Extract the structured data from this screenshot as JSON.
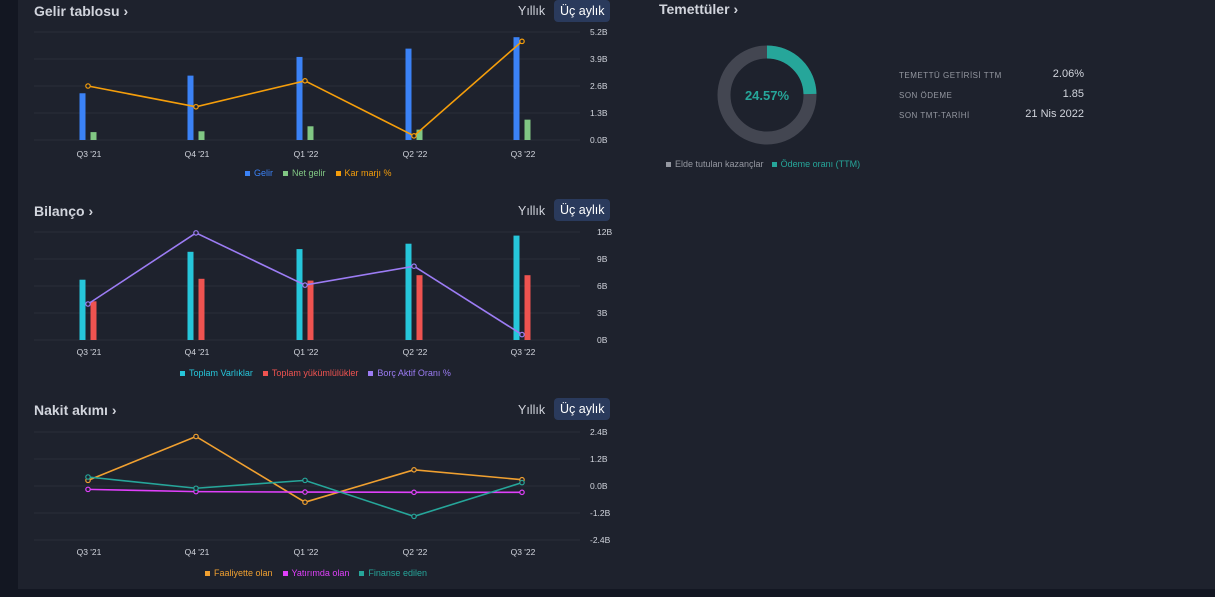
{
  "sections": [
    {
      "title": "Gelir tablosu",
      "chevron": "›",
      "buttons": [
        "Yıllık",
        "Üç aylık"
      ],
      "active_button": 1,
      "legend": [
        {
          "label": "Gelir",
          "color": "#3b82f6"
        },
        {
          "label": "Net gelir",
          "color": "#81c784"
        },
        {
          "label": "Kar marjı %",
          "color": "#f59e0b"
        }
      ]
    },
    {
      "title": "Bilanço",
      "chevron": "›",
      "buttons": [
        "Yıllık",
        "Üç aylık"
      ],
      "active_button": 1,
      "legend": [
        {
          "label": "Toplam Varlıklar",
          "color": "#26c6da"
        },
        {
          "label": "Toplam yükümlülükler",
          "color": "#ef5350"
        },
        {
          "label": "Borç Aktif Oranı %",
          "color": "#9c7cf4"
        }
      ]
    },
    {
      "title": "Nakit akımı",
      "chevron": "›",
      "buttons": [
        "Yıllık",
        "Üç aylık"
      ],
      "active_button": 1,
      "legend": [
        {
          "label": "Faaliyette olan",
          "color": "#f0a030"
        },
        {
          "label": "Yatırımda olan",
          "color": "#e040fb"
        },
        {
          "label": "Finanse edilen",
          "color": "#26a69a"
        }
      ]
    }
  ],
  "dividends": {
    "title": "Temettüler",
    "chevron": "›",
    "center_text": "24.57%",
    "payout_fraction": 0.2457,
    "stats": [
      {
        "label": "TEMETTÜ GETİRİSİ TTM",
        "value": "2.06%"
      },
      {
        "label": "SON ÖDEME",
        "value": "1.85"
      },
      {
        "label": "SON TMT-TARİHİ",
        "value": "21 Nis 2022"
      }
    ],
    "legend": [
      {
        "label": "Elde tutulan kazançlar",
        "color": "#9598a1"
      },
      {
        "label": "Ödeme oranı (TTM)",
        "color": "#26a69a"
      }
    ],
    "colors": {
      "retained": "#434651",
      "payout": "#26a69a"
    }
  },
  "chart_data": [
    {
      "type": "bar",
      "title": "Gelir tablosu",
      "categories": [
        "Q3 '21",
        "Q4 '21",
        "Q1 '22",
        "Q2 '22",
        "Q3 '22"
      ],
      "y_ticks": [
        "5.2B",
        "3.9B",
        "2.6B",
        "1.3B",
        "0.0B"
      ],
      "ylim": [
        0,
        5.2
      ],
      "series": [
        {
          "name": "Gelir",
          "kind": "bar",
          "color": "#3b82f6",
          "values": [
            2.25,
            3.1,
            4.0,
            4.4,
            4.95
          ]
        },
        {
          "name": "Net gelir",
          "kind": "bar",
          "color": "#81c784",
          "values": [
            0.38,
            0.42,
            0.66,
            0.5,
            0.98
          ]
        },
        {
          "name": "Kar marjı %",
          "kind": "line",
          "color": "#f59e0b",
          "values": [
            2.6,
            1.6,
            2.85,
            0.2,
            4.75
          ]
        }
      ]
    },
    {
      "type": "bar",
      "title": "Bilanço",
      "categories": [
        "Q3 '21",
        "Q4 '21",
        "Q1 '22",
        "Q2 '22",
        "Q3 '22"
      ],
      "y_ticks": [
        "12B",
        "9B",
        "6B",
        "3B",
        "0B"
      ],
      "ylim": [
        0,
        12
      ],
      "series": [
        {
          "name": "Toplam Varlıklar",
          "kind": "bar",
          "color": "#26c6da",
          "values": [
            6.7,
            9.8,
            10.1,
            10.7,
            11.6
          ]
        },
        {
          "name": "Toplam yükümlülükler",
          "kind": "bar",
          "color": "#ef5350",
          "values": [
            4.3,
            6.8,
            6.6,
            7.2,
            7.2
          ]
        },
        {
          "name": "Borç Aktif Oranı %",
          "kind": "line",
          "color": "#9c7cf4",
          "values": [
            4.0,
            11.9,
            6.1,
            8.2,
            0.6
          ]
        }
      ]
    },
    {
      "type": "line",
      "title": "Nakit akımı",
      "categories": [
        "Q3 '21",
        "Q4 '21",
        "Q1 '22",
        "Q2 '22",
        "Q3 '22"
      ],
      "y_ticks": [
        "2.4B",
        "1.2B",
        "0.0B",
        "-1.2B",
        "-2.4B"
      ],
      "ylim": [
        -2.4,
        2.4
      ],
      "series": [
        {
          "name": "Faaliyette olan",
          "kind": "line",
          "color": "#f0a030",
          "values": [
            0.25,
            2.2,
            -0.72,
            0.72,
            0.28
          ]
        },
        {
          "name": "Yatırımda olan",
          "kind": "line",
          "color": "#e040fb",
          "values": [
            -0.15,
            -0.25,
            -0.27,
            -0.28,
            -0.28
          ]
        },
        {
          "name": "Finanse edilen",
          "kind": "line",
          "color": "#26a69a",
          "values": [
            0.4,
            -0.1,
            0.25,
            -1.35,
            0.15
          ]
        }
      ]
    }
  ]
}
